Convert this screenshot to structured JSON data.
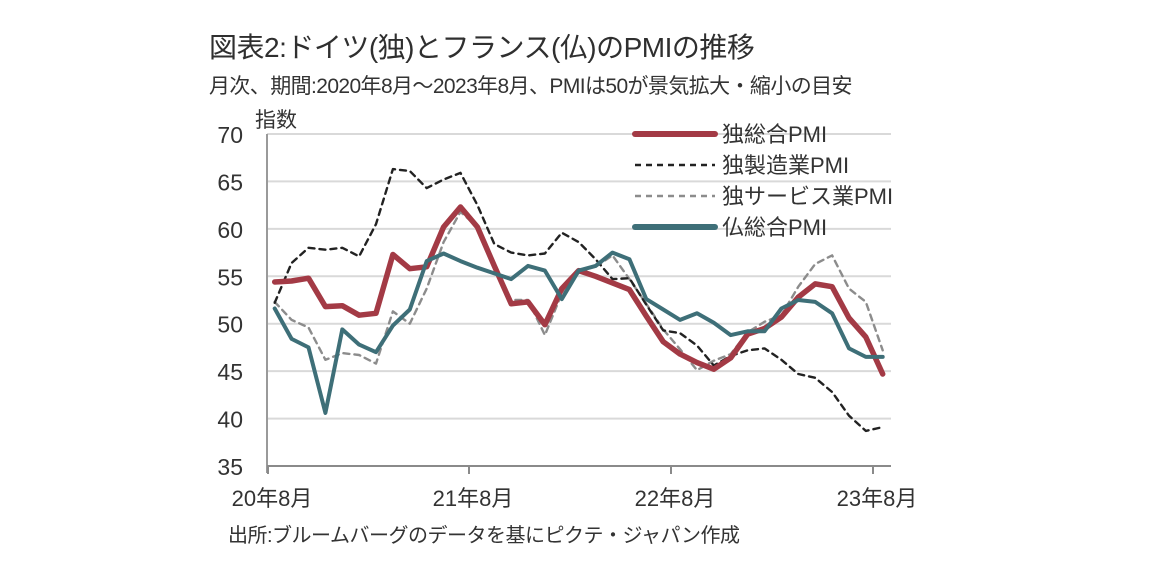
{
  "header": {
    "title": "図表2:ドイツ(独)とフランス(仏)のPMIの推移",
    "subtitle": "月次、期間:2020年8月～2023年8月、PMIは50が景気拡大・縮小の目安",
    "unit_label": "指数"
  },
  "footer": {
    "source": "出所:ブルームバーグのデータを基にピクテ・ジャパン作成"
  },
  "chart_data": {
    "type": "line",
    "title": "図表2:ドイツ(独)とフランス(仏)のPMIの推移",
    "subtitle": "月次、期間:2020年8月～2023年8月、PMIは50が景気拡大・縮小の目安",
    "xlabel": "",
    "ylabel": "指数",
    "ylim": [
      35,
      70
    ],
    "yticks": [
      35,
      40,
      45,
      50,
      55,
      60,
      65,
      70
    ],
    "grid": true,
    "legend_position": "top-right",
    "x": [
      "2020-08",
      "2020-09",
      "2020-10",
      "2020-11",
      "2020-12",
      "2021-01",
      "2021-02",
      "2021-03",
      "2021-04",
      "2021-05",
      "2021-06",
      "2021-07",
      "2021-08",
      "2021-09",
      "2021-10",
      "2021-11",
      "2021-12",
      "2022-01",
      "2022-02",
      "2022-03",
      "2022-04",
      "2022-05",
      "2022-06",
      "2022-07",
      "2022-08",
      "2022-09",
      "2022-10",
      "2022-11",
      "2022-12",
      "2023-01",
      "2023-02",
      "2023-03",
      "2023-04",
      "2023-05",
      "2023-06",
      "2023-07",
      "2023-08"
    ],
    "xticks": [
      {
        "index": 0,
        "label": "20年8月"
      },
      {
        "index": 12,
        "label": "21年8月"
      },
      {
        "index": 24,
        "label": "22年8月"
      },
      {
        "index": 36,
        "label": "23年8月"
      }
    ],
    "series": [
      {
        "name": "独総合PMI",
        "style": "solid-thick",
        "color": "#a33a45",
        "values": [
          54.4,
          54.5,
          54.8,
          51.8,
          51.9,
          50.9,
          51.1,
          57.3,
          55.8,
          56.0,
          60.2,
          62.3,
          60.2,
          56.1,
          52.1,
          52.3,
          49.9,
          53.7,
          55.6,
          55.0,
          54.3,
          53.6,
          50.8,
          48.1,
          46.8,
          45.9,
          45.2,
          46.4,
          48.9,
          49.5,
          50.7,
          52.8,
          54.2,
          53.9,
          50.6,
          48.6,
          44.7
        ]
      },
      {
        "name": "独製造業PMI",
        "style": "dashed",
        "color": "#222222",
        "values": [
          52.2,
          56.4,
          58.0,
          57.8,
          58.0,
          57.1,
          60.5,
          66.3,
          66.1,
          64.3,
          65.2,
          65.9,
          62.5,
          58.4,
          57.5,
          57.2,
          57.4,
          59.6,
          58.6,
          56.8,
          54.7,
          54.8,
          52.0,
          49.3,
          49.0,
          47.7,
          45.6,
          46.6,
          47.2,
          47.4,
          46.2,
          44.7,
          44.3,
          42.8,
          40.3,
          38.7,
          39.1
        ]
      },
      {
        "name": "独サービス業PMI",
        "style": "dashed",
        "color": "#8c8c8c",
        "values": [
          52.3,
          50.4,
          49.6,
          46.2,
          46.9,
          46.7,
          45.8,
          51.3,
          50.0,
          53.7,
          58.6,
          61.8,
          60.2,
          56.3,
          52.5,
          52.5,
          48.8,
          53.2,
          55.6,
          56.0,
          57.2,
          54.7,
          52.1,
          49.4,
          47.3,
          45.1,
          46.1,
          46.8,
          49.1,
          50.2,
          50.9,
          53.9,
          56.3,
          57.2,
          53.7,
          52.3,
          47.2
        ]
      },
      {
        "name": "仏総合PMI",
        "style": "solid",
        "color": "#3e6f78",
        "values": [
          51.6,
          48.4,
          47.5,
          40.6,
          49.4,
          47.8,
          47.0,
          49.8,
          51.5,
          56.6,
          57.4,
          56.6,
          55.9,
          55.3,
          54.7,
          56.1,
          55.6,
          52.6,
          55.6,
          56.1,
          57.5,
          56.8,
          52.6,
          51.5,
          50.4,
          51.1,
          50.1,
          48.8,
          49.2,
          49.2,
          51.6,
          52.5,
          52.3,
          51.1,
          47.4,
          46.5,
          46.5
        ]
      }
    ]
  }
}
